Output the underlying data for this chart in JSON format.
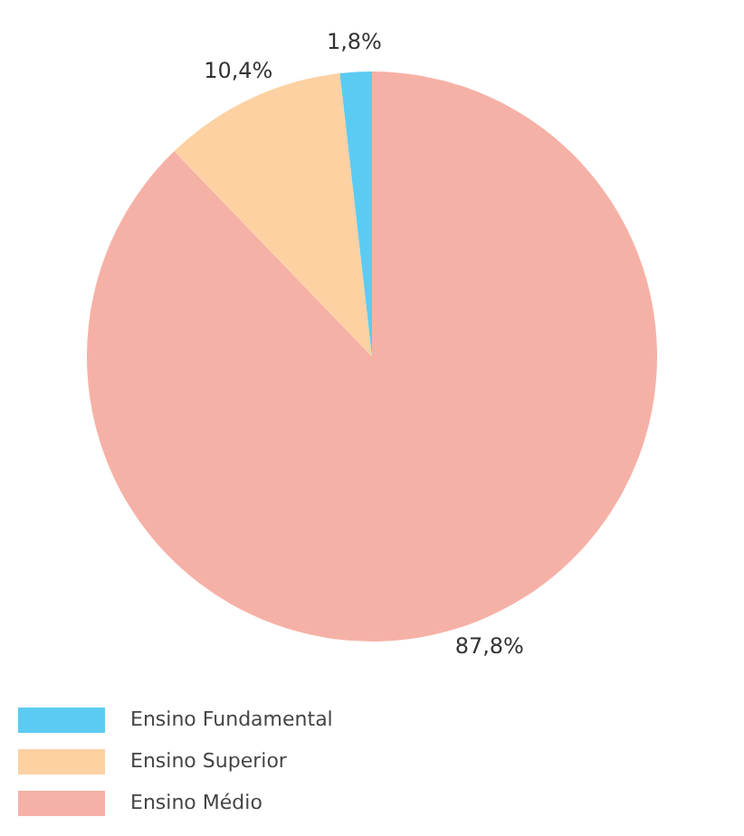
{
  "chart_data": {
    "type": "pie",
    "categories": [
      "Ensino Fundamental",
      "Ensino Superior",
      "Ensino Médio"
    ],
    "values": [
      1.8,
      10.4,
      87.8
    ],
    "colors": [
      "#5ccbf2",
      "#fdd1a2",
      "#f6b1a6"
    ],
    "value_labels": [
      "1,8%",
      "10,4%",
      "87,8%"
    ],
    "legend": "bottom left"
  }
}
